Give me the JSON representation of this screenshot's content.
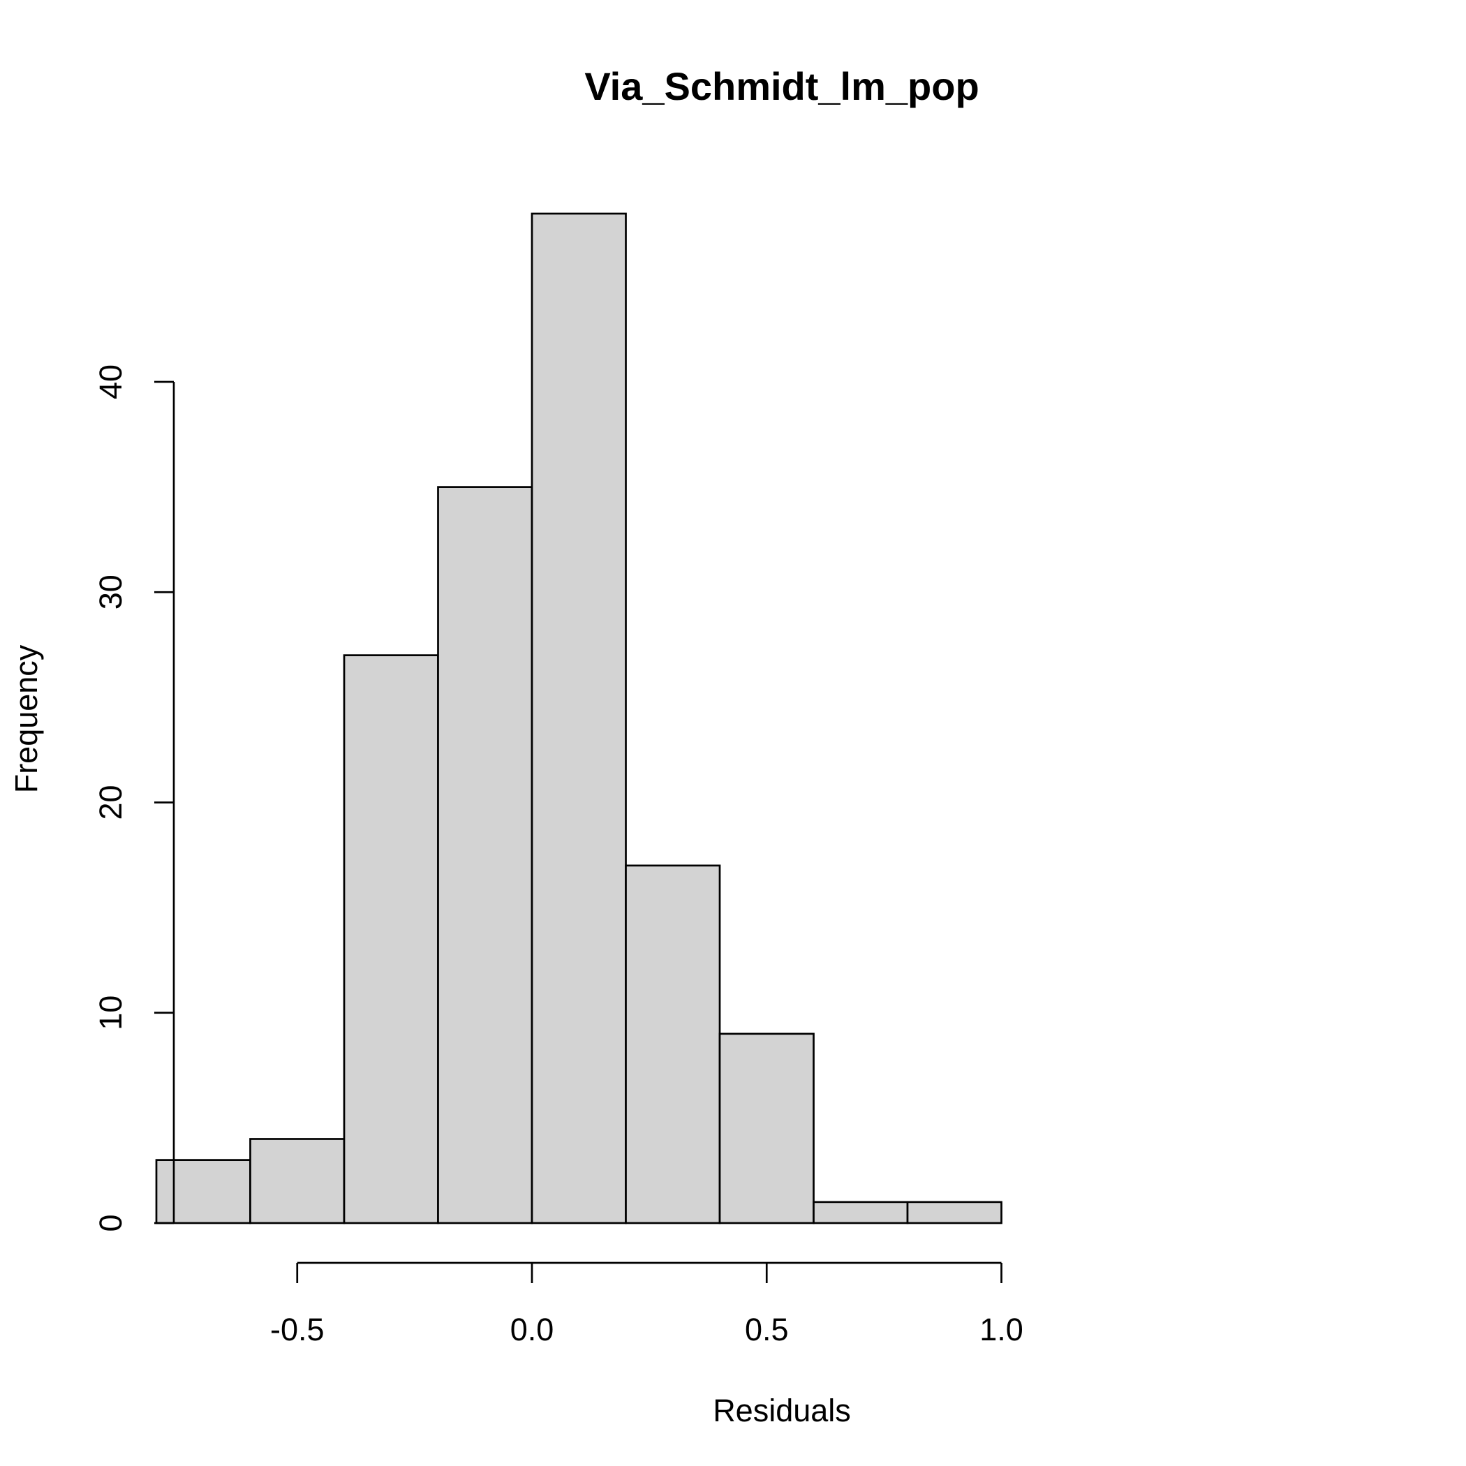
{
  "chart_data": {
    "type": "histogram",
    "title": "Via_Schmidt_lm_pop",
    "xlabel": "Residuals",
    "ylabel": "Frequency",
    "bins": [
      {
        "x0": -0.8,
        "x1": -0.6,
        "count": 3
      },
      {
        "x0": -0.6,
        "x1": -0.4,
        "count": 4
      },
      {
        "x0": -0.4,
        "x1": -0.2,
        "count": 27
      },
      {
        "x0": -0.2,
        "x1": 0.0,
        "count": 35
      },
      {
        "x0": 0.0,
        "x1": 0.2,
        "count": 48
      },
      {
        "x0": 0.2,
        "x1": 0.4,
        "count": 17
      },
      {
        "x0": 0.4,
        "x1": 0.6,
        "count": 9
      },
      {
        "x0": 0.6,
        "x1": 0.8,
        "count": 1
      },
      {
        "x0": 0.8,
        "x1": 1.0,
        "count": 1
      }
    ],
    "x_ticks": [
      {
        "value": -0.5,
        "label": "-0.5"
      },
      {
        "value": 0.0,
        "label": "0.0"
      },
      {
        "value": 0.5,
        "label": "0.5"
      },
      {
        "value": 1.0,
        "label": "1.0"
      }
    ],
    "y_ticks": [
      {
        "value": 0,
        "label": "0"
      },
      {
        "value": 10,
        "label": "10"
      },
      {
        "value": 20,
        "label": "20"
      },
      {
        "value": 30,
        "label": "30"
      },
      {
        "value": 40,
        "label": "40"
      }
    ],
    "xlim": [
      -0.8,
      1.0
    ],
    "ylim": [
      0,
      48
    ],
    "grid": false,
    "legend": "none",
    "colors": {
      "bar_fill": "#d3d3d3",
      "bar_stroke": "#000000",
      "axis": "#000000"
    }
  }
}
